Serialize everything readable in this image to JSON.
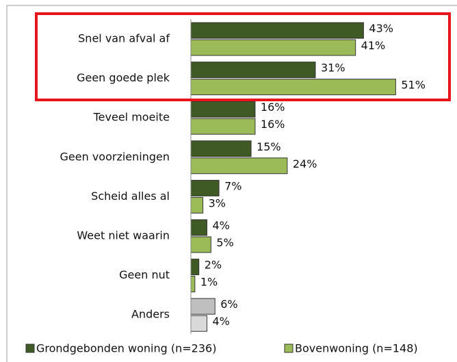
{
  "chart_data": {
    "type": "bar",
    "orientation": "horizontal",
    "categories": [
      "Snel van afval af",
      "Geen goede plek",
      "Teveel moeite",
      "Geen voorzieningen",
      "Scheid alles al",
      "Weet niet waarin",
      "Geen nut",
      "Anders"
    ],
    "series": [
      {
        "name": "Grondgebonden woning (n=236)",
        "color": "#3f5a25",
        "colors": [
          "#3f5a25",
          "#3f5a25",
          "#3f5a25",
          "#3f5a25",
          "#3f5a25",
          "#3f5a25",
          "#3f5a25",
          "#bfbfbf"
        ],
        "values": [
          43,
          31,
          16,
          15,
          7,
          4,
          2,
          6
        ],
        "value_labels": [
          "43%",
          "31%",
          "16%",
          "15%",
          "7%",
          "4%",
          "2%",
          "6%"
        ]
      },
      {
        "name": "Bovenwoning (n=148)",
        "color": "#9bbb59",
        "colors": [
          "#9bbb59",
          "#9bbb59",
          "#9bbb59",
          "#9bbb59",
          "#9bbb59",
          "#9bbb59",
          "#9bbb59",
          "#d9d9d9"
        ],
        "values": [
          41,
          51,
          16,
          24,
          3,
          5,
          1,
          4
        ],
        "value_labels": [
          "41%",
          "51%",
          "16%",
          "24%",
          "3%",
          "5%",
          "1%",
          "4%"
        ]
      }
    ],
    "legend": "bottom"
  }
}
